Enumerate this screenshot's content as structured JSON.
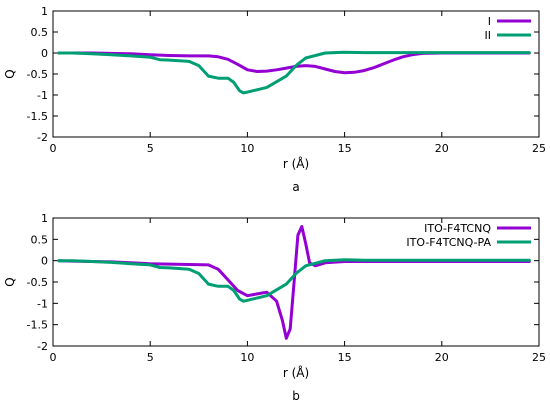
{
  "chart_data": [
    {
      "type": "line",
      "panel_label": "a",
      "xlabel": "r (Å)",
      "ylabel": "Q",
      "xlim": [
        0,
        25
      ],
      "ylim": [
        -2,
        1
      ],
      "xticks": [
        "0",
        "5",
        "10",
        "15",
        "20",
        "25"
      ],
      "yticks": [
        "1",
        "0.5",
        "0",
        "-0.5",
        "-1",
        "-1.5",
        "-2"
      ],
      "legend_position": "top-right",
      "series": [
        {
          "name": "I",
          "color": "#9400d3",
          "x": [
            0.3,
            1,
            2,
            3,
            4,
            5,
            6,
            7,
            8,
            8.5,
            9,
            9.5,
            10,
            10.5,
            11,
            11.5,
            12,
            12.5,
            13,
            13.5,
            14,
            14.5,
            15,
            15.5,
            16,
            16.5,
            17,
            17.5,
            18,
            18.5,
            19,
            20,
            22,
            24.5
          ],
          "y": [
            0,
            0,
            0,
            -0.01,
            -0.02,
            -0.04,
            -0.06,
            -0.07,
            -0.07,
            -0.09,
            -0.15,
            -0.27,
            -0.4,
            -0.44,
            -0.43,
            -0.4,
            -0.36,
            -0.32,
            -0.3,
            -0.32,
            -0.38,
            -0.44,
            -0.47,
            -0.46,
            -0.42,
            -0.35,
            -0.26,
            -0.17,
            -0.09,
            -0.04,
            -0.01,
            0,
            0,
            0
          ]
        },
        {
          "name": "II",
          "color": "#009e73",
          "x": [
            0.3,
            1,
            2,
            3,
            4,
            5,
            5.5,
            6,
            7,
            7.5,
            8,
            8.5,
            9,
            9.3,
            9.6,
            9.8,
            10,
            11,
            12,
            12.5,
            13,
            14,
            15,
            16,
            18,
            20,
            24.5
          ],
          "y": [
            0,
            0,
            -0.02,
            -0.04,
            -0.07,
            -0.1,
            -0.16,
            -0.17,
            -0.2,
            -0.3,
            -0.55,
            -0.6,
            -0.6,
            -0.7,
            -0.9,
            -0.95,
            -0.93,
            -0.82,
            -0.55,
            -0.3,
            -0.12,
            0,
            0.02,
            0.01,
            0.01,
            0.01,
            0.01
          ]
        }
      ]
    },
    {
      "type": "line",
      "panel_label": "b",
      "xlabel": "r (Å)",
      "ylabel": "Q",
      "xlim": [
        0,
        25
      ],
      "ylim": [
        -2,
        1
      ],
      "xticks": [
        "0",
        "5",
        "10",
        "15",
        "20",
        "25"
      ],
      "yticks": [
        "1",
        "0.5",
        "0",
        "-0.5",
        "-1",
        "-1.5",
        "-2"
      ],
      "legend_position": "top-right",
      "series": [
        {
          "name": "ITO-F4TCNQ",
          "color": "#9400d3",
          "x": [
            0.3,
            1,
            2,
            3,
            4,
            5,
            6,
            7,
            8,
            8.5,
            9,
            9.5,
            10,
            10.5,
            11,
            11.5,
            11.8,
            12,
            12.2,
            12.4,
            12.6,
            12.8,
            13,
            13.2,
            13.5,
            14,
            15,
            16,
            18,
            20,
            22,
            24.5
          ],
          "y": [
            0,
            -0.01,
            -0.02,
            -0.03,
            -0.05,
            -0.07,
            -0.08,
            -0.09,
            -0.1,
            -0.2,
            -0.45,
            -0.7,
            -0.82,
            -0.78,
            -0.74,
            -0.95,
            -1.4,
            -1.82,
            -1.6,
            -0.5,
            0.6,
            0.8,
            0.4,
            -0.05,
            -0.12,
            -0.05,
            -0.02,
            -0.02,
            -0.02,
            -0.02,
            -0.02,
            -0.02
          ]
        },
        {
          "name": "ITO-F4TCNQ-PA",
          "color": "#009e73",
          "x": [
            0.3,
            1,
            2,
            3,
            4,
            5,
            5.5,
            6,
            7,
            7.5,
            8,
            8.5,
            9,
            9.3,
            9.6,
            9.8,
            10,
            11,
            12,
            12.5,
            13,
            14,
            15,
            16,
            18,
            20,
            24.5
          ],
          "y": [
            0,
            0,
            -0.02,
            -0.04,
            -0.07,
            -0.1,
            -0.16,
            -0.17,
            -0.2,
            -0.3,
            -0.55,
            -0.6,
            -0.6,
            -0.7,
            -0.9,
            -0.95,
            -0.93,
            -0.82,
            -0.55,
            -0.3,
            -0.12,
            0,
            0.02,
            0.01,
            0.01,
            0.01,
            0.01
          ]
        }
      ]
    }
  ]
}
